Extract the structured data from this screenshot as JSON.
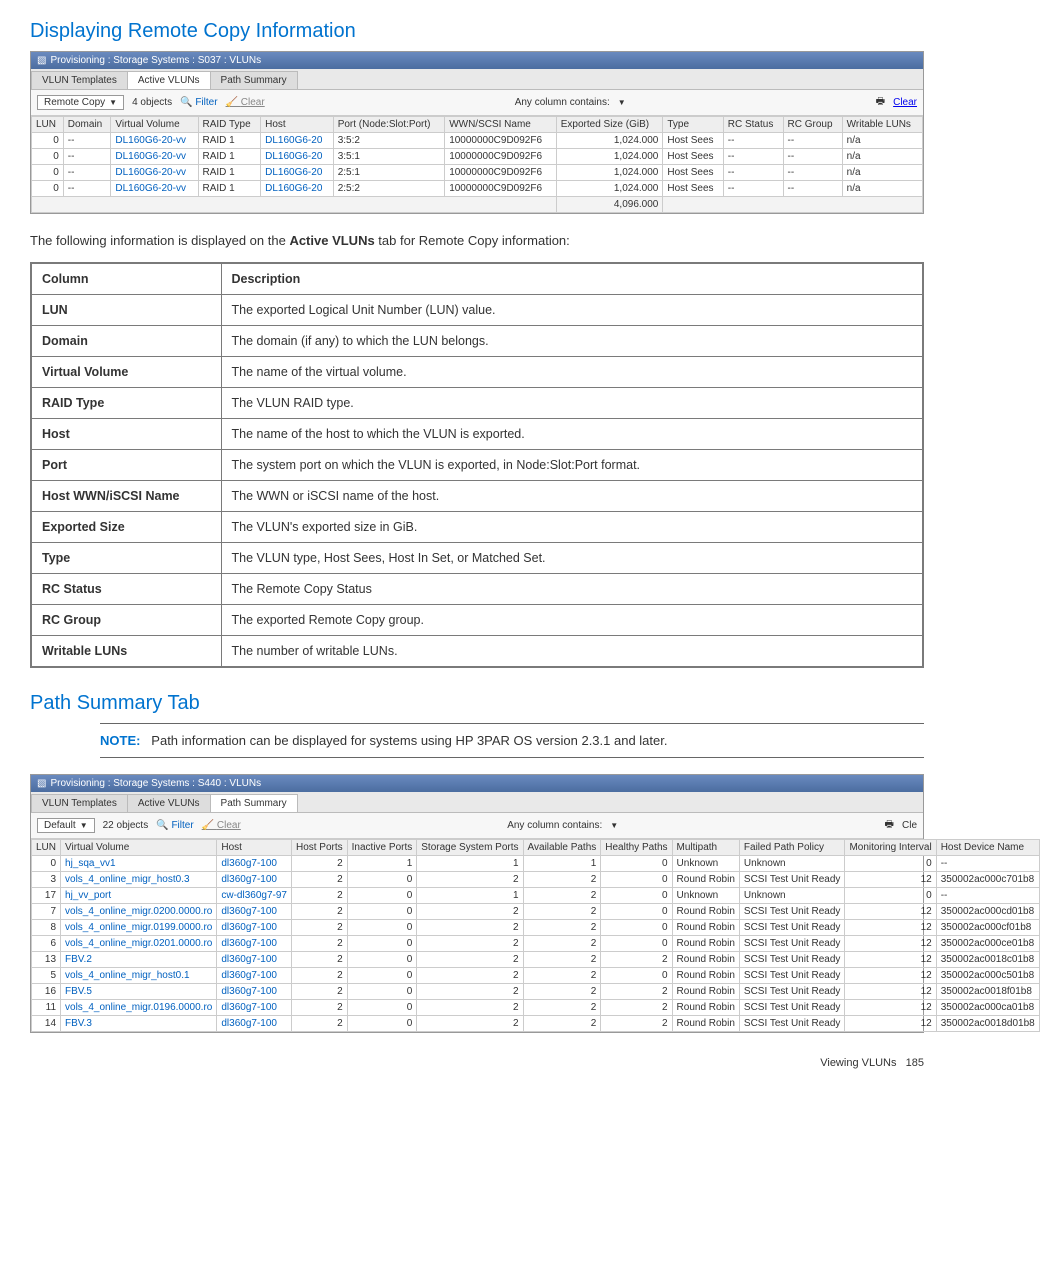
{
  "headings": {
    "remote_copy": "Displaying Remote Copy Information",
    "path_summary": "Path Summary Tab"
  },
  "window1": {
    "titlebar": "Provisioning : Storage Systems : S037 : VLUNs",
    "tabs": [
      "VLUN Templates",
      "Active VLUNs",
      "Path Summary"
    ],
    "active_tab_index": 1,
    "dropdown_label": "Remote Copy",
    "objects_text": "4 objects",
    "filter_label": "Filter",
    "clear_label": "Clear",
    "any_column_label": "Any column contains:",
    "clear_right": "Clear",
    "columns": [
      "LUN",
      "Domain",
      "Virtual Volume",
      "RAID Type",
      "Host",
      "Port (Node:Slot:Port)",
      "WWN/SCSI Name",
      "Exported Size (GiB)",
      "Type",
      "RC Status",
      "RC Group",
      "Writable LUNs"
    ],
    "rows": [
      {
        "lun": "0",
        "domain": "--",
        "vv": "DL160G6-20-vv",
        "raid": "RAID 1",
        "host": "DL160G6-20",
        "port": "3:5:2",
        "wwn": "10000000C9D092F6",
        "size": "1,024.000",
        "type": "Host Sees",
        "rcstatus": "--",
        "rcgroup": "--",
        "wl": "n/a"
      },
      {
        "lun": "0",
        "domain": "--",
        "vv": "DL160G6-20-vv",
        "raid": "RAID 1",
        "host": "DL160G6-20",
        "port": "3:5:1",
        "wwn": "10000000C9D092F6",
        "size": "1,024.000",
        "type": "Host Sees",
        "rcstatus": "--",
        "rcgroup": "--",
        "wl": "n/a"
      },
      {
        "lun": "0",
        "domain": "--",
        "vv": "DL160G6-20-vv",
        "raid": "RAID 1",
        "host": "DL160G6-20",
        "port": "2:5:1",
        "wwn": "10000000C9D092F6",
        "size": "1,024.000",
        "type": "Host Sees",
        "rcstatus": "--",
        "rcgroup": "--",
        "wl": "n/a"
      },
      {
        "lun": "0",
        "domain": "--",
        "vv": "DL160G6-20-vv",
        "raid": "RAID 1",
        "host": "DL160G6-20",
        "port": "2:5:2",
        "wwn": "10000000C9D092F6",
        "size": "1,024.000",
        "type": "Host Sees",
        "rcstatus": "--",
        "rcgroup": "--",
        "wl": "n/a"
      }
    ],
    "footer_total": "4,096.000"
  },
  "para1": "The following information is displayed on the Active VLUNs tab for Remote Copy information:",
  "desc_table": {
    "header": [
      "Column",
      "Description"
    ],
    "rows": [
      [
        "LUN",
        "The exported Logical Unit Number (LUN) value."
      ],
      [
        "Domain",
        "The domain (if any) to which the LUN belongs."
      ],
      [
        "Virtual Volume",
        "The name of the virtual volume."
      ],
      [
        "RAID Type",
        "The VLUN RAID type."
      ],
      [
        "Host",
        "The name of the host to which the VLUN is exported."
      ],
      [
        "Port",
        "The system port on which the VLUN is exported, in Node:Slot:Port format."
      ],
      [
        "Host WWN/iSCSI Name",
        "The WWN or iSCSI name of the host."
      ],
      [
        "Exported Size",
        "The VLUN's exported size in GiB."
      ],
      [
        "Type",
        "The VLUN type, Host Sees, Host In Set, or Matched Set."
      ],
      [
        "RC Status",
        "The Remote Copy Status"
      ],
      [
        "RC Group",
        "The exported Remote Copy group."
      ],
      [
        "Writable LUNs",
        "The number of writable LUNs."
      ]
    ]
  },
  "note": {
    "label": "NOTE:",
    "text": "Path information can be displayed for systems using HP 3PAR OS version 2.3.1 and later."
  },
  "window2": {
    "titlebar": "Provisioning : Storage Systems : S440 : VLUNs",
    "tabs": [
      "VLUN Templates",
      "Active VLUNs",
      "Path Summary"
    ],
    "active_tab_index": 2,
    "dropdown_label": "Default",
    "objects_text": "22 objects",
    "filter_label": "Filter",
    "clear_label": "Clear",
    "any_column_label": "Any column contains:",
    "clear_right_cut": "Cle",
    "columns": [
      "LUN",
      "Virtual Volume",
      "Host",
      "Host Ports",
      "Inactive Ports",
      "Storage System Ports",
      "Available Paths",
      "Healthy Paths",
      "Multipath",
      "Failed Path Policy",
      "Monitoring Interval",
      "Host Device Name"
    ],
    "rows": [
      {
        "lun": "0",
        "vv": "hj_sqa_vv1",
        "host": "dl360g7-100",
        "hp": "2",
        "ip": "1",
        "ssp": "1",
        "ap": "1",
        "hpth": "0",
        "mp": "Unknown",
        "fpp": "Unknown",
        "mi": "0",
        "hdn": "--"
      },
      {
        "lun": "3",
        "vv": "vols_4_online_migr_host0.3",
        "host": "dl360g7-100",
        "hp": "2",
        "ip": "0",
        "ssp": "2",
        "ap": "2",
        "hpth": "0",
        "mp": "Round Robin",
        "fpp": "SCSI Test Unit Ready",
        "mi": "12",
        "hdn": "350002ac000c701b8"
      },
      {
        "lun": "17",
        "vv": "hj_vv_port",
        "host": "cw-dl360g7-97",
        "hp": "2",
        "ip": "0",
        "ssp": "1",
        "ap": "2",
        "hpth": "0",
        "mp": "Unknown",
        "fpp": "Unknown",
        "mi": "0",
        "hdn": "--"
      },
      {
        "lun": "7",
        "vv": "vols_4_online_migr.0200.0000.ro",
        "host": "dl360g7-100",
        "hp": "2",
        "ip": "0",
        "ssp": "2",
        "ap": "2",
        "hpth": "0",
        "mp": "Round Robin",
        "fpp": "SCSI Test Unit Ready",
        "mi": "12",
        "hdn": "350002ac000cd01b8"
      },
      {
        "lun": "8",
        "vv": "vols_4_online_migr.0199.0000.ro",
        "host": "dl360g7-100",
        "hp": "2",
        "ip": "0",
        "ssp": "2",
        "ap": "2",
        "hpth": "0",
        "mp": "Round Robin",
        "fpp": "SCSI Test Unit Ready",
        "mi": "12",
        "hdn": "350002ac000cf01b8"
      },
      {
        "lun": "6",
        "vv": "vols_4_online_migr.0201.0000.ro",
        "host": "dl360g7-100",
        "hp": "2",
        "ip": "0",
        "ssp": "2",
        "ap": "2",
        "hpth": "0",
        "mp": "Round Robin",
        "fpp": "SCSI Test Unit Ready",
        "mi": "12",
        "hdn": "350002ac000ce01b8"
      },
      {
        "lun": "13",
        "vv": "FBV.2",
        "host": "dl360g7-100",
        "hp": "2",
        "ip": "0",
        "ssp": "2",
        "ap": "2",
        "hpth": "2",
        "mp": "Round Robin",
        "fpp": "SCSI Test Unit Ready",
        "mi": "12",
        "hdn": "350002ac0018c01b8"
      },
      {
        "lun": "5",
        "vv": "vols_4_online_migr_host0.1",
        "host": "dl360g7-100",
        "hp": "2",
        "ip": "0",
        "ssp": "2",
        "ap": "2",
        "hpth": "0",
        "mp": "Round Robin",
        "fpp": "SCSI Test Unit Ready",
        "mi": "12",
        "hdn": "350002ac000c501b8"
      },
      {
        "lun": "16",
        "vv": "FBV.5",
        "host": "dl360g7-100",
        "hp": "2",
        "ip": "0",
        "ssp": "2",
        "ap": "2",
        "hpth": "2",
        "mp": "Round Robin",
        "fpp": "SCSI Test Unit Ready",
        "mi": "12",
        "hdn": "350002ac0018f01b8"
      },
      {
        "lun": "11",
        "vv": "vols_4_online_migr.0196.0000.ro",
        "host": "dl360g7-100",
        "hp": "2",
        "ip": "0",
        "ssp": "2",
        "ap": "2",
        "hpth": "2",
        "mp": "Round Robin",
        "fpp": "SCSI Test Unit Ready",
        "mi": "12",
        "hdn": "350002ac000ca01b8"
      },
      {
        "lun": "14",
        "vv": "FBV.3",
        "host": "dl360g7-100",
        "hp": "2",
        "ip": "0",
        "ssp": "2",
        "ap": "2",
        "hpth": "2",
        "mp": "Round Robin",
        "fpp": "SCSI Test Unit Ready",
        "mi": "12",
        "hdn": "350002ac0018d01b8"
      }
    ]
  },
  "footer": {
    "text": "Viewing VLUNs",
    "page": "185"
  },
  "colors": {
    "link_blue": "#0060bf",
    "heading_blue": "#0073cf",
    "grid_border": "#cccccc"
  }
}
